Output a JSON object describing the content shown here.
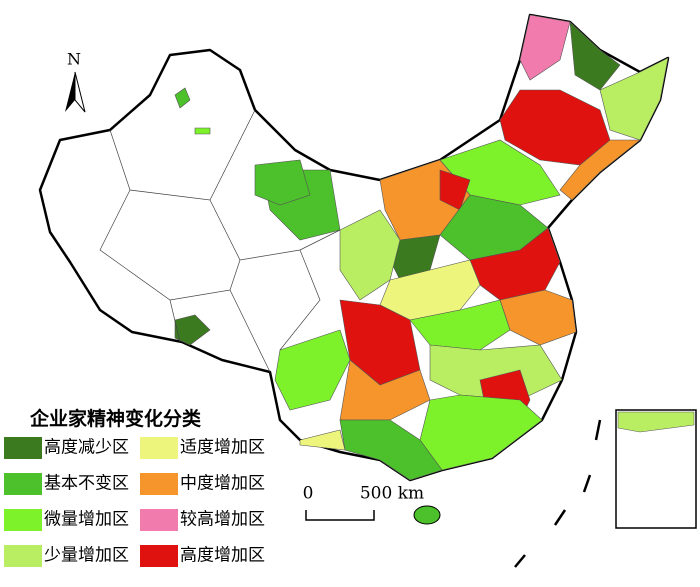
{
  "map": {
    "north_arrow": {
      "label": "N"
    },
    "legend": {
      "title": "企业家精神变化分类",
      "items": [
        {
          "label": "高度减少区",
          "color": "#3b7a1f"
        },
        {
          "label": "基本不变区",
          "color": "#4cc12b"
        },
        {
          "label": "微量增加区",
          "color": "#7df22b"
        },
        {
          "label": "少量增加区",
          "color": "#b9ee62"
        },
        {
          "label": "适度增加区",
          "color": "#eef57c"
        },
        {
          "label": "中度增加区",
          "color": "#f5952c"
        },
        {
          "label": "较高增加区",
          "color": "#f27bae"
        },
        {
          "label": "高度增加区",
          "color": "#e0120f"
        }
      ]
    },
    "scale_bar": {
      "labels": [
        "0",
        "500 km"
      ]
    }
  }
}
